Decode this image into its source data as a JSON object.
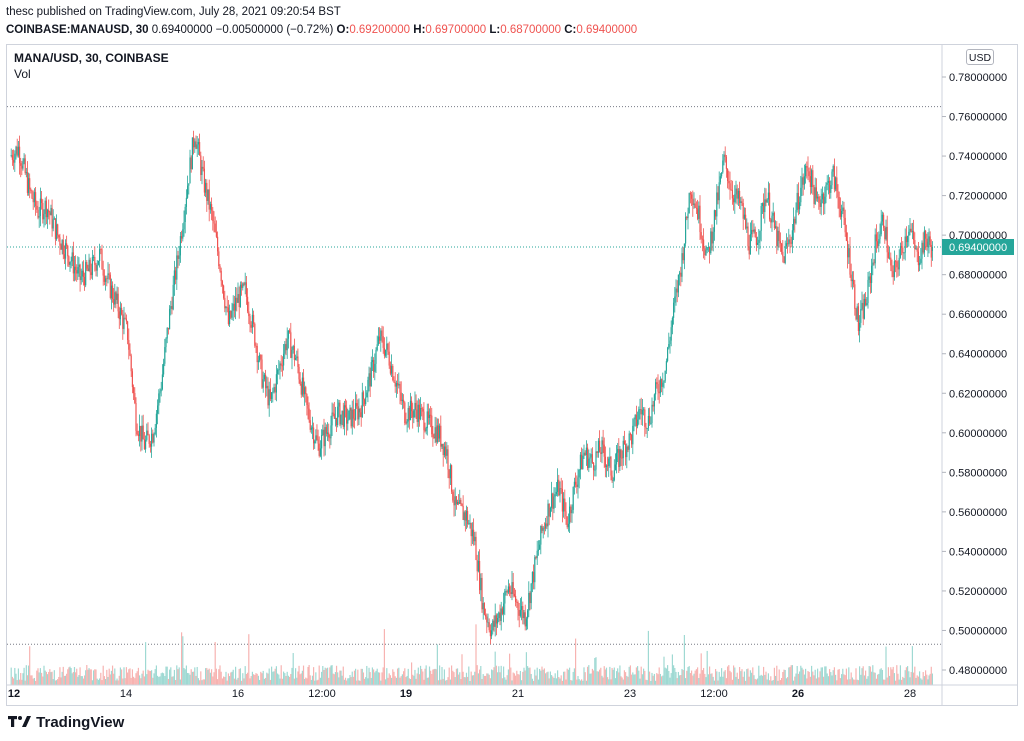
{
  "header": {
    "publisher_line": "thesc published on TradingView.com, July 28, 2021 09:20:54 BST",
    "symbol": "COINBASE:MANAUSD, 30",
    "last_price": "0.69400000",
    "change": "−0.00500000 (−0.72%)",
    "o_label": "O:",
    "o_value": "0.69200000",
    "h_label": "H:",
    "h_value": "0.69700000",
    "l_label": "L:",
    "l_value": "0.68700000",
    "c_label": "C:",
    "c_value": "0.69400000"
  },
  "legend": {
    "title": "MANA/USD, 30, COINBASE",
    "volume": "Vol"
  },
  "currency_button": "USD",
  "footer": {
    "brand": "TradingView"
  },
  "colors": {
    "up": "#26a69a",
    "down": "#ef5350",
    "vol_up": "#9fd9d3",
    "vol_down": "#f7b3b1",
    "last": "#26a69a"
  },
  "chart_data": {
    "type": "candlestick",
    "title": "MANA/USD, 30, COINBASE",
    "ylim": [
      0.47,
      0.79
    ],
    "y_ticks": [
      "0.78000000",
      "0.76000000",
      "0.74000000",
      "0.72000000",
      "0.70000000",
      "0.68000000",
      "0.66000000",
      "0.64000000",
      "0.62000000",
      "0.60000000",
      "0.58000000",
      "0.56000000",
      "0.54000000",
      "0.52000000",
      "0.50000000",
      "0.48000000"
    ],
    "x_ticks": [
      {
        "label": "12",
        "day": 12,
        "bold": true
      },
      {
        "label": "14",
        "day": 14,
        "bold": false
      },
      {
        "label": "16",
        "day": 16,
        "bold": false
      },
      {
        "label": "12:00",
        "day": 17.5,
        "bold": false
      },
      {
        "label": "19",
        "day": 19,
        "bold": true
      },
      {
        "label": "21",
        "day": 21,
        "bold": false
      },
      {
        "label": "23",
        "day": 23,
        "bold": false
      },
      {
        "label": "12:00",
        "day": 24.5,
        "bold": false
      },
      {
        "label": "26",
        "day": 26,
        "bold": true
      },
      {
        "label": "28",
        "day": 28,
        "bold": false
      }
    ],
    "last_price": 0.694,
    "last_price_label": "0.69400000",
    "range_high": 0.765,
    "range_low": 0.493,
    "series_close": [
      {
        "day": 11.95,
        "price": 0.74
      },
      {
        "day": 12.1,
        "price": 0.744
      },
      {
        "day": 12.3,
        "price": 0.722
      },
      {
        "day": 12.45,
        "price": 0.712
      },
      {
        "day": 12.6,
        "price": 0.715
      },
      {
        "day": 12.8,
        "price": 0.7
      },
      {
        "day": 13.0,
        "price": 0.69
      },
      {
        "day": 13.2,
        "price": 0.678
      },
      {
        "day": 13.4,
        "price": 0.683
      },
      {
        "day": 13.55,
        "price": 0.69
      },
      {
        "day": 13.7,
        "price": 0.676
      },
      {
        "day": 13.9,
        "price": 0.662
      },
      {
        "day": 14.05,
        "price": 0.65
      },
      {
        "day": 14.2,
        "price": 0.607
      },
      {
        "day": 14.35,
        "price": 0.594
      },
      {
        "day": 14.5,
        "price": 0.6
      },
      {
        "day": 14.65,
        "price": 0.625
      },
      {
        "day": 14.8,
        "price": 0.66
      },
      {
        "day": 14.95,
        "price": 0.689
      },
      {
        "day": 15.1,
        "price": 0.722
      },
      {
        "day": 15.25,
        "price": 0.752
      },
      {
        "day": 15.4,
        "price": 0.728
      },
      {
        "day": 15.55,
        "price": 0.71
      },
      {
        "day": 15.7,
        "price": 0.685
      },
      {
        "day": 15.85,
        "price": 0.655
      },
      {
        "day": 16.0,
        "price": 0.667
      },
      {
        "day": 16.15,
        "price": 0.672
      },
      {
        "day": 16.3,
        "price": 0.652
      },
      {
        "day": 16.45,
        "price": 0.628
      },
      {
        "day": 16.6,
        "price": 0.615
      },
      {
        "day": 16.75,
        "price": 0.632
      },
      {
        "day": 16.9,
        "price": 0.648
      },
      {
        "day": 17.05,
        "price": 0.638
      },
      {
        "day": 17.25,
        "price": 0.612
      },
      {
        "day": 17.45,
        "price": 0.593
      },
      {
        "day": 17.6,
        "price": 0.6
      },
      {
        "day": 17.8,
        "price": 0.61
      },
      {
        "day": 18.0,
        "price": 0.607
      },
      {
        "day": 18.2,
        "price": 0.612
      },
      {
        "day": 18.4,
        "price": 0.63
      },
      {
        "day": 18.55,
        "price": 0.648
      },
      {
        "day": 18.7,
        "price": 0.64
      },
      {
        "day": 18.85,
        "price": 0.625
      },
      {
        "day": 19.0,
        "price": 0.61
      },
      {
        "day": 19.2,
        "price": 0.612
      },
      {
        "day": 19.4,
        "price": 0.605
      },
      {
        "day": 19.6,
        "price": 0.6
      },
      {
        "day": 19.75,
        "price": 0.59
      },
      {
        "day": 19.9,
        "price": 0.562
      },
      {
        "day": 20.1,
        "price": 0.558
      },
      {
        "day": 20.25,
        "price": 0.545
      },
      {
        "day": 20.4,
        "price": 0.512
      },
      {
        "day": 20.55,
        "price": 0.5
      },
      {
        "day": 20.7,
        "price": 0.509
      },
      {
        "day": 20.85,
        "price": 0.522
      },
      {
        "day": 21.0,
        "price": 0.514
      },
      {
        "day": 21.15,
        "price": 0.507
      },
      {
        "day": 21.3,
        "price": 0.529
      },
      {
        "day": 21.45,
        "price": 0.55
      },
      {
        "day": 21.6,
        "price": 0.565
      },
      {
        "day": 21.75,
        "price": 0.572
      },
      {
        "day": 21.9,
        "price": 0.555
      },
      {
        "day": 22.05,
        "price": 0.575
      },
      {
        "day": 22.2,
        "price": 0.59
      },
      {
        "day": 22.35,
        "price": 0.585
      },
      {
        "day": 22.5,
        "price": 0.592
      },
      {
        "day": 22.7,
        "price": 0.58
      },
      {
        "day": 22.9,
        "price": 0.592
      },
      {
        "day": 23.05,
        "price": 0.598
      },
      {
        "day": 23.2,
        "price": 0.612
      },
      {
        "day": 23.35,
        "price": 0.606
      },
      {
        "day": 23.5,
        "price": 0.622
      },
      {
        "day": 23.65,
        "price": 0.632
      },
      {
        "day": 23.8,
        "price": 0.662
      },
      {
        "day": 23.95,
        "price": 0.688
      },
      {
        "day": 24.1,
        "price": 0.725
      },
      {
        "day": 24.25,
        "price": 0.71
      },
      {
        "day": 24.4,
        "price": 0.688
      },
      {
        "day": 24.55,
        "price": 0.712
      },
      {
        "day": 24.7,
        "price": 0.738
      },
      {
        "day": 24.85,
        "price": 0.722
      },
      {
        "day": 25.0,
        "price": 0.715
      },
      {
        "day": 25.15,
        "price": 0.696
      },
      {
        "day": 25.3,
        "price": 0.7
      },
      {
        "day": 25.45,
        "price": 0.722
      },
      {
        "day": 25.6,
        "price": 0.703
      },
      {
        "day": 25.75,
        "price": 0.688
      },
      {
        "day": 25.9,
        "price": 0.7
      },
      {
        "day": 26.05,
        "price": 0.722
      },
      {
        "day": 26.2,
        "price": 0.735
      },
      {
        "day": 26.35,
        "price": 0.716
      },
      {
        "day": 26.5,
        "price": 0.722
      },
      {
        "day": 26.65,
        "price": 0.73
      },
      {
        "day": 26.8,
        "price": 0.712
      },
      {
        "day": 26.95,
        "price": 0.686
      },
      {
        "day": 27.1,
        "price": 0.654
      },
      {
        "day": 27.25,
        "price": 0.668
      },
      {
        "day": 27.4,
        "price": 0.695
      },
      {
        "day": 27.55,
        "price": 0.708
      },
      {
        "day": 27.7,
        "price": 0.678
      },
      {
        "day": 27.85,
        "price": 0.69
      },
      {
        "day": 28.0,
        "price": 0.705
      },
      {
        "day": 28.15,
        "price": 0.688
      },
      {
        "day": 28.3,
        "price": 0.698
      },
      {
        "day": 28.4,
        "price": 0.694
      }
    ]
  }
}
